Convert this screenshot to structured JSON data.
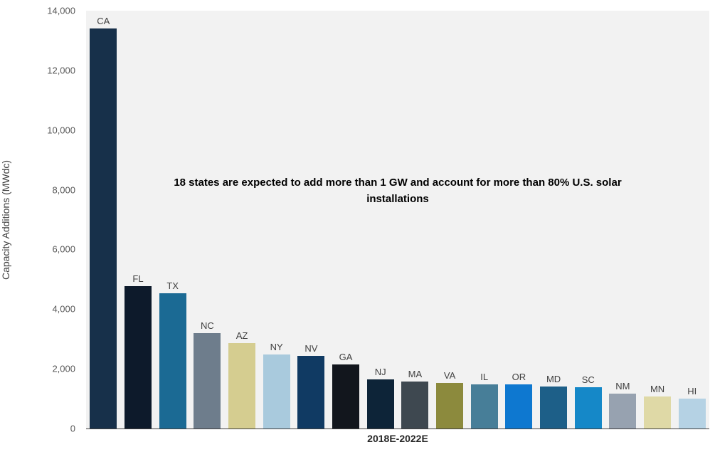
{
  "chart_data": {
    "type": "bar",
    "title": "",
    "annotation": "18 states are expected to add more than 1 GW and account for more than 80% U.S. solar installations",
    "xlabel": "2018E-2022E",
    "ylabel": "Capacity Additions (MWdc)",
    "ylim": [
      0,
      14000
    ],
    "y_ticks": [
      {
        "value": 0,
        "label": "0"
      },
      {
        "value": 2000,
        "label": "2,000"
      },
      {
        "value": 4000,
        "label": "4,000"
      },
      {
        "value": 6000,
        "label": "6,000"
      },
      {
        "value": 8000,
        "label": "8,000"
      },
      {
        "value": 10000,
        "label": "10,000"
      },
      {
        "value": 12000,
        "label": "12,000"
      },
      {
        "value": 14000,
        "label": "14,000"
      }
    ],
    "grid": false,
    "legend": false,
    "plot_background": "#f2f2f2",
    "categories": [
      "CA",
      "FL",
      "TX",
      "NC",
      "AZ",
      "NY",
      "NV",
      "GA",
      "NJ",
      "MA",
      "VA",
      "IL",
      "OR",
      "MD",
      "SC",
      "NM",
      "MN",
      "HI"
    ],
    "values": [
      13400,
      4770,
      4530,
      3200,
      2870,
      2480,
      2440,
      2150,
      1650,
      1580,
      1530,
      1480,
      1480,
      1400,
      1390,
      1170,
      1080,
      1010
    ],
    "colors": [
      "#17304a",
      "#0d1a2b",
      "#1b6a94",
      "#6e7d8c",
      "#d5cd90",
      "#a9cadd",
      "#103a63",
      "#12161d",
      "#0d2438",
      "#3e4850",
      "#8c8a3d",
      "#477e98",
      "#0e78d0",
      "#1d5f88",
      "#1588c8",
      "#97a2b0",
      "#dfd9a6",
      "#b5d2e4"
    ]
  }
}
